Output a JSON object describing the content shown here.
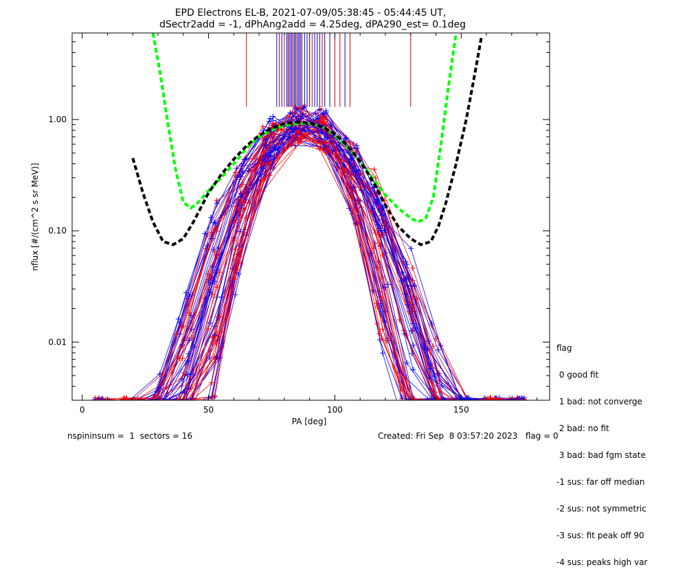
{
  "chart_data": {
    "type": "line",
    "title": "EPD Electrons EL-B, 2021-07-09/05:38:45 - 05:44:45 UT,",
    "subtitle": "dSectr2add = -1, dPhAng2add = 4.25deg, dPA290_est=   0.1deg",
    "xlabel": "PA [deg]",
    "ylabel": "nflux [#/(cm^2 s sr MeV)]",
    "xlim": [
      -4,
      185
    ],
    "ylim": [
      0.003,
      6.0
    ],
    "yscale": "log",
    "xticks": [
      "0",
      "50",
      "100",
      "150"
    ],
    "xtick_values": [
      0,
      50,
      100,
      150
    ],
    "yticks": [
      "0.01",
      "0.10",
      "1.00"
    ],
    "ytick_values": [
      0.01,
      0.1,
      1.0
    ],
    "grid": false,
    "series": [
      {
        "color": "#00ff00",
        "style": "dashed-thick",
        "x": [
          28,
          31,
          34,
          37,
          40,
          43,
          46,
          50,
          55,
          60,
          65,
          70,
          75,
          80,
          85,
          90,
          95,
          100,
          105,
          110,
          115,
          120,
          125,
          130,
          133,
          136,
          139,
          142,
          145,
          148
        ],
        "y": [
          6.0,
          2.5,
          0.9,
          0.35,
          0.18,
          0.16,
          0.18,
          0.23,
          0.3,
          0.4,
          0.55,
          0.7,
          0.8,
          0.88,
          0.92,
          0.92,
          0.86,
          0.72,
          0.56,
          0.42,
          0.3,
          0.21,
          0.16,
          0.13,
          0.12,
          0.13,
          0.2,
          0.6,
          2.0,
          6.0
        ]
      },
      {
        "color": "#000000",
        "style": "dashed-thick",
        "x": [
          20,
          24,
          28,
          32,
          36,
          40,
          44,
          50,
          55,
          60,
          65,
          70,
          75,
          80,
          85,
          90,
          95,
          100,
          105,
          110,
          115,
          120,
          125,
          130,
          134,
          138,
          141,
          144,
          148,
          152,
          155,
          158
        ],
        "y": [
          0.45,
          0.22,
          0.12,
          0.08,
          0.075,
          0.085,
          0.12,
          0.22,
          0.32,
          0.44,
          0.58,
          0.72,
          0.84,
          0.92,
          0.95,
          0.93,
          0.86,
          0.74,
          0.58,
          0.42,
          0.28,
          0.17,
          0.11,
          0.085,
          0.075,
          0.08,
          0.11,
          0.18,
          0.4,
          1.0,
          2.3,
          5.5
        ]
      }
    ],
    "spikes": {
      "x": [
        65,
        77,
        78,
        79,
        80,
        81,
        81.5,
        82,
        82.5,
        83,
        83.5,
        84,
        84.5,
        85,
        85.5,
        86,
        86.5,
        87,
        88,
        89,
        90,
        91,
        92,
        93,
        94,
        95,
        96,
        98,
        100,
        102,
        104,
        106,
        130
      ],
      "colors": [
        "#cc0000",
        "#0000cc",
        "#cc0000",
        "#0000cc",
        "#cc0000",
        "#0000cc",
        "#0000cc",
        "#cc0000",
        "#0000cc",
        "#0000cc",
        "#cc0000",
        "#0000cc",
        "#0000cc",
        "#cc0000",
        "#0000cc",
        "#0000cc",
        "#0000cc",
        "#cc0000",
        "#0000cc",
        "#0000cc",
        "#0000cc",
        "#cc0000",
        "#0000cc",
        "#0000cc",
        "#0000cc",
        "#cc0000",
        "#0000cc",
        "#0000cc",
        "#cc0000",
        "#cc0000",
        "#0000cc",
        "#cc0000",
        "#cc0000"
      ],
      "y_top": 6.0,
      "y_bottom": 1.3
    },
    "scatter_colors": [
      "#ff0000",
      "#0000ff"
    ],
    "legend_placement": "bottom-right outside"
  },
  "legend": {
    "title": "flag",
    "items": [
      " 0 good fit",
      " 1 bad: not converge",
      " 2 bad: no fit",
      " 3 bad: bad fgm state",
      "-1 sus: far off median",
      "-2 sus: not symmetric",
      "-3 sus: fit peak off 90",
      "-4 sus: peaks high var"
    ]
  },
  "footer": {
    "left": "nspininsum =  1  sectors = 16",
    "right": "Created: Fri Sep  8 03:57:20 2023   flag = 0"
  }
}
